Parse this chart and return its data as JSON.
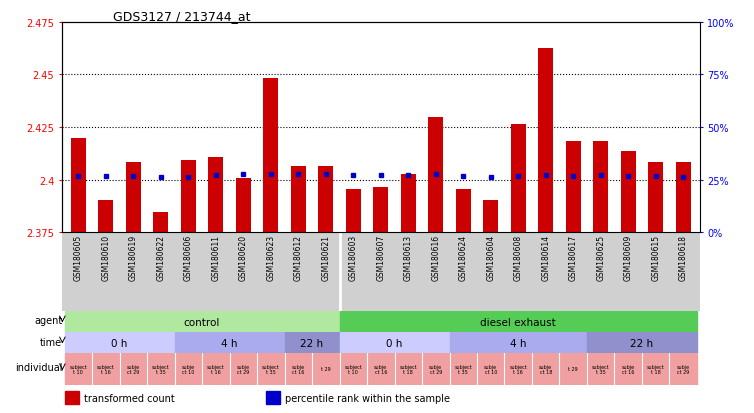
{
  "title": "GDS3127 / 213744_at",
  "samples": [
    "GSM180605",
    "GSM180610",
    "GSM180619",
    "GSM180622",
    "GSM180606",
    "GSM180611",
    "GSM180620",
    "GSM180623",
    "GSM180612",
    "GSM180621",
    "GSM180603",
    "GSM180607",
    "GSM180613",
    "GSM180616",
    "GSM180624",
    "GSM180604",
    "GSM180608",
    "GSM180614",
    "GSM180617",
    "GSM180625",
    "GSM180609",
    "GSM180615",
    "GSM180618"
  ],
  "red_values": [
    2.4197,
    2.3905,
    2.4085,
    2.3845,
    2.4095,
    2.4105,
    2.4005,
    2.4485,
    2.4065,
    2.4065,
    2.3955,
    2.3965,
    2.4025,
    2.4295,
    2.3955,
    2.3905,
    2.4265,
    2.4625,
    2.4185,
    2.4185,
    2.4135,
    2.4085,
    2.4085
  ],
  "blue_values": [
    2.4015,
    2.4015,
    2.4015,
    2.401,
    2.401,
    2.402,
    2.4025,
    2.4025,
    2.4025,
    2.4025,
    2.402,
    2.402,
    2.402,
    2.4025,
    2.4015,
    2.401,
    2.4015,
    2.402,
    2.4015,
    2.402,
    2.4015,
    2.4015,
    2.401
  ],
  "ymin": 2.375,
  "ymax": 2.475,
  "yticks_left": [
    2.375,
    2.4,
    2.425,
    2.45,
    2.475
  ],
  "yticks_right": [
    0,
    25,
    50,
    75,
    100
  ],
  "gridlines": [
    2.45,
    2.425,
    2.4
  ],
  "bar_color": "#cc0000",
  "dot_color": "#0000cc",
  "sample_bg": "#d0d0d0",
  "agent_control_color": "#b0e8a0",
  "agent_diesel_color": "#55cc55",
  "time_0h_color": "#ccccff",
  "time_4h_color": "#aaaaee",
  "time_22h_color": "#9090cc",
  "indiv_bg": "#f0a0a0",
  "legend_red": "transformed count",
  "legend_blue": "percentile rank within the sample",
  "indiv_labels": [
    "subject\nt 10",
    "subject\nt 16",
    "subje\nct 29",
    "subject\nt 35",
    "subje\nct 10",
    "subject\nt 16",
    "subje\nct 29",
    "subject\nt 35",
    "subje\nct 16",
    "t 29",
    "subject\nt 10",
    "subje\nct 16",
    "subject\nt 18",
    "subje\nct 29",
    "subject\nt 35",
    "subje\nct 10",
    "subject\nt 16",
    "subje\nct 18",
    "t 29",
    "subject\nt 35",
    "subje\nct 16",
    "subject\nt 18",
    "subje\nct 29"
  ]
}
